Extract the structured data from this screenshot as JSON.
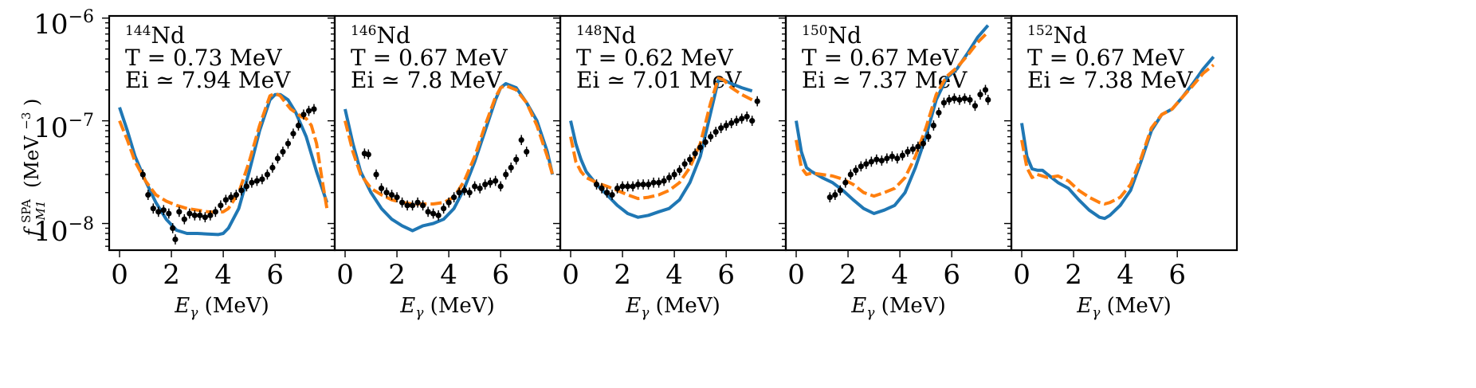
{
  "chart_data": {
    "type": "line",
    "y_scale": "log",
    "ylim": [
      5.5e-09,
      1.05e-06
    ],
    "y_ticks": [
      {
        "value": 1e-08,
        "base": "10",
        "exp": "−8"
      },
      {
        "value": 1e-07,
        "base": "10",
        "exp": "−7"
      },
      {
        "value": 1e-06,
        "base": "10",
        "exp": "−6"
      }
    ],
    "ylabel": {
      "f": "f",
      "sup": "SPA",
      "sub": "M1",
      "unit_open": "(MeV",
      "unit_exp": "−3",
      "unit_close": ")"
    },
    "xlabel": {
      "symbol": "E",
      "sub": "γ",
      "unit": " (MeV)"
    },
    "x_ticks": [
      "0",
      "2",
      "4",
      "6"
    ],
    "x_tick_values": [
      0,
      2,
      4,
      6
    ],
    "colors": {
      "blue": "#1f77b4",
      "orange": "#ff7f0e",
      "data": "#000000"
    },
    "panels": [
      {
        "nucleus_mass": "144",
        "nucleus_symbol": "Nd",
        "temp_text": "T = 0.73 MeV",
        "energy_text": "Ei ≃ 7.94 MeV",
        "T_val": "0.73",
        "Ei_val": "7.94",
        "xlim": [
          -0.4,
          8.3
        ],
        "blue": {
          "x": [
            0,
            0.3,
            0.6,
            1.0,
            1.4,
            1.8,
            2.2,
            2.6,
            3.0,
            3.4,
            3.8,
            4.0,
            4.2,
            4.6,
            5.0,
            5.4,
            5.8,
            6.0,
            6.2,
            6.5,
            6.8,
            7.2,
            7.6,
            8.0
          ],
          "y": [
            1.35e-07,
            8e-08,
            4.5e-08,
            2.6e-08,
            1.6e-08,
            1.1e-08,
            8.6e-09,
            8e-09,
            8e-09,
            7.9e-09,
            7.8e-09,
            8e-09,
            9e-09,
            1.4e-08,
            3.2e-08,
            8e-08,
            1.6e-07,
            1.8e-07,
            1.8e-07,
            1.6e-07,
            1.2e-07,
            7e-08,
            3.2e-08,
            1.6e-08
          ]
        },
        "orange": {
          "x": [
            0,
            0.3,
            0.6,
            1.0,
            1.4,
            1.8,
            2.2,
            2.6,
            3.0,
            3.4,
            3.8,
            4.0,
            4.2,
            4.6,
            5.0,
            5.4,
            5.8,
            6.0,
            6.2,
            6.4,
            6.6,
            6.8,
            7.0,
            7.2,
            7.4,
            7.6,
            7.8,
            8.0
          ],
          "y": [
            1e-07,
            6.5e-08,
            4e-08,
            2.6e-08,
            1.9e-08,
            1.65e-08,
            1.5e-08,
            1.4e-08,
            1.35e-08,
            1.3e-08,
            1.28e-08,
            1.3e-08,
            1.4e-08,
            2e-08,
            4e-08,
            9e-08,
            1.75e-07,
            1.85e-07,
            1.75e-07,
            1.5e-07,
            1.3e-07,
            1.2e-07,
            1.1e-07,
            1.05e-07,
            9e-08,
            6e-08,
            2.8e-08,
            1.4e-08
          ]
        },
        "points": {
          "x": [
            0.9,
            1.1,
            1.3,
            1.5,
            1.7,
            1.9,
            2.05,
            2.15,
            2.3,
            2.5,
            2.7,
            2.9,
            3.1,
            3.3,
            3.5,
            3.7,
            3.9,
            4.1,
            4.3,
            4.5,
            4.7,
            4.9,
            5.1,
            5.3,
            5.5,
            5.7,
            5.9,
            6.1,
            6.3,
            6.5,
            6.7,
            6.9,
            7.1,
            7.3,
            7.5
          ],
          "y": [
            3e-08,
            1.9e-08,
            1.4e-08,
            1.3e-08,
            1.35e-08,
            1.25e-08,
            9e-09,
            7e-09,
            1.3e-08,
            1.1e-08,
            1.25e-08,
            1.2e-08,
            1.2e-08,
            1.15e-08,
            1.2e-08,
            1.3e-08,
            1.5e-08,
            1.7e-08,
            1.8e-08,
            1.9e-08,
            2.1e-08,
            2.3e-08,
            2.5e-08,
            2.6e-08,
            2.7e-08,
            3e-08,
            3.5e-08,
            4.3e-08,
            5e-08,
            6e-08,
            7.5e-08,
            9e-08,
            1.15e-07,
            1.25e-07,
            1.3e-07
          ]
        }
      },
      {
        "nucleus_mass": "146",
        "nucleus_symbol": "Nd",
        "temp_text": "T = 0.67 MeV",
        "energy_text": "Ei ≃ 7.8 MeV",
        "T_val": "0.67",
        "Ei_val": "7.8",
        "xlim": [
          -0.4,
          8.3
        ],
        "blue": {
          "x": [
            0,
            0.3,
            0.6,
            1.0,
            1.4,
            1.8,
            2.2,
            2.6,
            3.0,
            3.4,
            3.8,
            4.2,
            4.6,
            5.0,
            5.4,
            5.8,
            6.0,
            6.2,
            6.6,
            7.0,
            7.4,
            7.8,
            8.0
          ],
          "y": [
            1.3e-07,
            6e-08,
            3.2e-08,
            2e-08,
            1.4e-08,
            1.1e-08,
            9.5e-09,
            8.5e-09,
            9.5e-09,
            1e-08,
            1.1e-08,
            1.4e-08,
            2.2e-08,
            4e-08,
            8e-08,
            1.6e-07,
            2.1e-07,
            2.3e-07,
            2.1e-07,
            1.5e-07,
            1e-07,
            5e-08,
            3e-08
          ]
        },
        "orange": {
          "x": [
            0,
            0.3,
            0.6,
            1.0,
            1.4,
            1.8,
            2.2,
            2.6,
            3.0,
            3.4,
            3.8,
            4.2,
            4.6,
            5.0,
            5.4,
            5.8,
            6.0,
            6.2,
            6.6,
            7.0,
            7.4,
            7.8,
            8.0
          ],
          "y": [
            1e-07,
            5e-08,
            3e-08,
            2.2e-08,
            1.9e-08,
            1.7e-08,
            1.6e-08,
            1.55e-08,
            1.55e-08,
            1.55e-08,
            1.6e-08,
            1.8e-08,
            2.6e-08,
            4.5e-08,
            9e-08,
            1.7e-07,
            2.1e-07,
            2.2e-07,
            2e-07,
            1.5e-07,
            9e-08,
            4.5e-08,
            3e-08
          ]
        },
        "points": {
          "x": [
            0.75,
            0.9,
            1.2,
            1.4,
            1.6,
            1.8,
            2.0,
            2.2,
            2.4,
            2.6,
            2.8,
            3.0,
            3.2,
            3.4,
            3.6,
            3.8,
            4.0,
            4.2,
            4.4,
            4.6,
            4.8,
            5.0,
            5.2,
            5.4,
            5.6,
            5.8,
            6.0,
            6.2,
            6.4,
            6.6,
            6.8,
            7.0
          ],
          "y": [
            4.8e-08,
            4.7e-08,
            3e-08,
            2.2e-08,
            2e-08,
            1.9e-08,
            1.8e-08,
            1.6e-08,
            1.5e-08,
            1.5e-08,
            1.6e-08,
            1.5e-08,
            1.3e-08,
            1.25e-08,
            1.2e-08,
            1.4e-08,
            1.6e-08,
            1.8e-08,
            2e-08,
            2.1e-08,
            2e-08,
            2.3e-08,
            2.2e-08,
            2.4e-08,
            2.5e-08,
            2.6e-08,
            2.3e-08,
            3e-08,
            3.5e-08,
            4.2e-08,
            6.5e-08,
            5e-08
          ]
        }
      },
      {
        "nucleus_mass": "148",
        "nucleus_symbol": "Nd",
        "temp_text": "T = 0.62 MeV",
        "energy_text": "Ei ≃ 7.01 MeV",
        "T_val": "0.62",
        "Ei_val": "7.01",
        "xlim": [
          -0.4,
          8.3
        ],
        "blue": {
          "x": [
            0,
            0.2,
            0.4,
            0.6,
            1.0,
            1.4,
            1.8,
            2.2,
            2.6,
            3.0,
            3.4,
            3.8,
            4.2,
            4.6,
            5.0,
            5.4,
            5.7,
            5.9,
            6.2,
            6.6,
            7.0
          ],
          "y": [
            1e-07,
            6e-08,
            4.2e-08,
            3.2e-08,
            2.4e-08,
            1.9e-08,
            1.5e-08,
            1.25e-08,
            1.15e-08,
            1.2e-08,
            1.3e-08,
            1.4e-08,
            1.7e-08,
            2.5e-08,
            4.5e-08,
            1.2e-07,
            2.5e-07,
            2.5e-07,
            2.3e-07,
            2.1e-07,
            1.95e-07
          ]
        },
        "orange": {
          "x": [
            0,
            0.2,
            0.4,
            0.6,
            1.0,
            1.4,
            1.8,
            2.2,
            2.6,
            3.0,
            3.4,
            3.8,
            4.2,
            4.6,
            5.0,
            5.4,
            5.7,
            5.9,
            6.2,
            6.6,
            7.0
          ],
          "y": [
            7e-08,
            4e-08,
            3.2e-08,
            2.8e-08,
            2.5e-08,
            2.3e-08,
            2.1e-08,
            1.9e-08,
            1.75e-08,
            1.8e-08,
            1.9e-08,
            2.1e-08,
            2.5e-08,
            3.5e-08,
            6e-08,
            1.5e-07,
            2.6e-07,
            2.5e-07,
            2.1e-07,
            1.8e-07,
            1.6e-07
          ]
        },
        "points": {
          "x": [
            1.0,
            1.2,
            1.4,
            1.6,
            1.8,
            2.0,
            2.2,
            2.4,
            2.6,
            2.8,
            3.0,
            3.2,
            3.4,
            3.6,
            3.8,
            4.0,
            4.2,
            4.4,
            4.6,
            4.8,
            5.0,
            5.2,
            5.4,
            5.6,
            5.8,
            6.0,
            6.2,
            6.4,
            6.6,
            6.8,
            7.0,
            7.2
          ],
          "y": [
            2.4e-08,
            2.2e-08,
            2e-08,
            1.9e-08,
            2.2e-08,
            2.3e-08,
            2.3e-08,
            2.3e-08,
            2.4e-08,
            2.4e-08,
            2.4e-08,
            2.5e-08,
            2.5e-08,
            2.6e-08,
            2.8e-08,
            3e-08,
            3.3e-08,
            3.8e-08,
            4.2e-08,
            4.8e-08,
            5.5e-08,
            6.2e-08,
            7e-08,
            7.8e-08,
            8.5e-08,
            9e-08,
            9.5e-08,
            1e-07,
            1.05e-07,
            1.1e-07,
            1e-07,
            1.55e-07
          ]
        }
      },
      {
        "nucleus_mass": "150",
        "nucleus_symbol": "Nd",
        "temp_text": "T = 0.67 MeV",
        "energy_text": "Ei ≃ 7.37 MeV",
        "T_val": "0.67",
        "Ei_val": "7.37",
        "xlim": [
          -0.4,
          8.3
        ],
        "blue": {
          "x": [
            0,
            0.2,
            0.4,
            0.6,
            1.0,
            1.4,
            1.8,
            2.2,
            2.6,
            3.0,
            3.4,
            3.8,
            4.2,
            4.6,
            5.0,
            5.4,
            5.8,
            6.2,
            6.6,
            7.0,
            7.4
          ],
          "y": [
            1e-07,
            5e-08,
            3.5e-08,
            3.2e-08,
            2.8e-08,
            2.5e-08,
            2.1e-08,
            1.7e-08,
            1.4e-08,
            1.25e-08,
            1.35e-08,
            1.5e-08,
            2e-08,
            3.5e-08,
            7e-08,
            1.6e-07,
            2.6e-07,
            3.2e-07,
            4.5e-07,
            6.5e-07,
            8.5e-07
          ]
        },
        "orange": {
          "x": [
            0,
            0.2,
            0.4,
            0.6,
            1.0,
            1.4,
            1.8,
            2.2,
            2.6,
            3.0,
            3.4,
            3.8,
            4.2,
            4.6,
            5.0,
            5.4,
            5.8,
            6.2,
            6.6,
            7.0,
            7.4
          ],
          "y": [
            6.5e-08,
            3.5e-08,
            3e-08,
            3.1e-08,
            3e-08,
            2.9e-08,
            2.7e-08,
            2.4e-08,
            2e-08,
            1.85e-08,
            2e-08,
            2.2e-08,
            2.8e-08,
            4.5e-08,
            8.5e-08,
            1.8e-07,
            2.7e-07,
            3.3e-07,
            4.3e-07,
            5.8e-07,
            7.3e-07
          ]
        },
        "points": {
          "x": [
            1.3,
            1.5,
            1.7,
            1.9,
            2.1,
            2.3,
            2.5,
            2.7,
            2.9,
            3.1,
            3.3,
            3.5,
            3.7,
            3.9,
            4.1,
            4.3,
            4.5,
            4.7,
            4.9,
            5.1,
            5.3,
            5.5,
            5.7,
            5.9,
            6.1,
            6.3,
            6.5,
            6.7,
            6.9,
            7.1,
            7.3,
            7.4
          ],
          "y": [
            1.8e-08,
            1.9e-08,
            2.1e-08,
            2.5e-08,
            3e-08,
            3.3e-08,
            3.6e-08,
            3.8e-08,
            4e-08,
            4.2e-08,
            4.1e-08,
            4.3e-08,
            4.5e-08,
            4.3e-08,
            4.6e-08,
            5e-08,
            5.3e-08,
            5.6e-08,
            6e-08,
            7e-08,
            9e-08,
            1.2e-07,
            1.5e-07,
            1.6e-07,
            1.65e-07,
            1.6e-07,
            1.65e-07,
            1.6e-07,
            1.4e-07,
            1.8e-07,
            2e-07,
            1.6e-07
          ]
        }
      },
      {
        "nucleus_mass": "152",
        "nucleus_symbol": "Nd",
        "temp_text": "T = 0.67 MeV",
        "energy_text": "Ei ≃ 7.38 MeV",
        "T_val": "0.67",
        "Ei_val": "7.38",
        "xlim": [
          -0.4,
          8.3
        ],
        "blue": {
          "x": [
            0,
            0.2,
            0.4,
            0.6,
            0.8,
            1.0,
            1.4,
            1.8,
            2.2,
            2.6,
            3.0,
            3.2,
            3.4,
            3.8,
            4.2,
            4.6,
            5.0,
            5.4,
            5.8,
            6.2,
            6.6,
            7.0,
            7.4
          ],
          "y": [
            9.5e-08,
            4.5e-08,
            3.4e-08,
            3.3e-08,
            3.3e-08,
            3e-08,
            2.5e-08,
            2.2e-08,
            1.7e-08,
            1.35e-08,
            1.15e-08,
            1.12e-08,
            1.2e-08,
            1.5e-08,
            2.1e-08,
            4e-08,
            8e-08,
            1.15e-07,
            1.3e-07,
            1.7e-07,
            2.3e-07,
            3.2e-07,
            4.2e-07
          ]
        },
        "orange": {
          "x": [
            0,
            0.2,
            0.4,
            0.6,
            0.8,
            1.0,
            1.4,
            1.8,
            2.2,
            2.6,
            3.0,
            3.2,
            3.4,
            3.8,
            4.2,
            4.6,
            5.0,
            5.4,
            5.8,
            6.2,
            6.6,
            7.0,
            7.4
          ],
          "y": [
            6.5e-08,
            3.5e-08,
            2.8e-08,
            3e-08,
            2.9e-08,
            2.8e-08,
            2.9e-08,
            2.6e-08,
            2.1e-08,
            1.8e-08,
            1.6e-08,
            1.55e-08,
            1.6e-08,
            1.8e-08,
            2.4e-08,
            4.3e-08,
            8.5e-08,
            1.15e-07,
            1.3e-07,
            1.7e-07,
            2.2e-07,
            2.9e-07,
            3.5e-07
          ]
        },
        "points": {
          "x": [],
          "y": []
        }
      }
    ]
  }
}
